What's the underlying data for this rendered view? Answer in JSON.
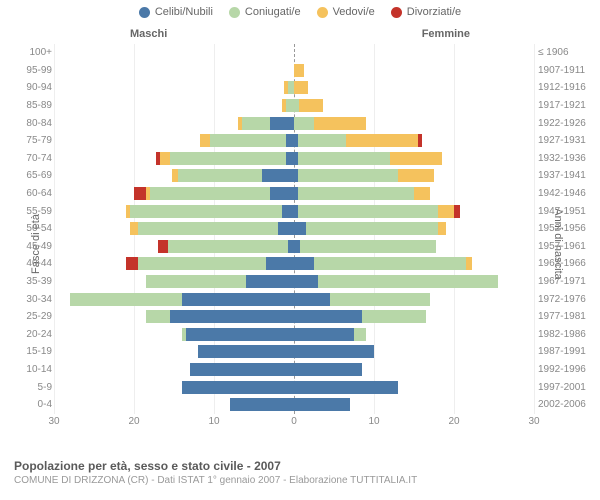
{
  "legend": [
    {
      "label": "Celibi/Nubili",
      "color": "#4b79a8"
    },
    {
      "label": "Coniugati/e",
      "color": "#b7d7a8"
    },
    {
      "label": "Vedovi/e",
      "color": "#f5c25d"
    },
    {
      "label": "Divorziati/e",
      "color": "#c4332a"
    }
  ],
  "header_male": "Maschi",
  "header_female": "Femmine",
  "ylabel_left": "Fasce di età",
  "ylabel_right": "Anni di nascita",
  "xmax": 30,
  "xticks_left": [
    30,
    20,
    10,
    0
  ],
  "xticks_right": [
    10,
    20,
    30
  ],
  "colors": {
    "celibi": "#4b79a8",
    "coniugati": "#b7d7a8",
    "vedovi": "#f5c25d",
    "divorziati": "#c4332a",
    "grid": "#eeeeee",
    "centerline": "#999999",
    "text_muted": "#888888",
    "bg": "#ffffff"
  },
  "rows": [
    {
      "age": "100+",
      "birth": "≤ 1906",
      "m": {
        "c": 0,
        "co": 0,
        "v": 0,
        "d": 0
      },
      "f": {
        "c": 0,
        "co": 0,
        "v": 0,
        "d": 0
      }
    },
    {
      "age": "95-99",
      "birth": "1907-1911",
      "m": {
        "c": 0,
        "co": 0,
        "v": 0,
        "d": 0
      },
      "f": {
        "c": 0,
        "co": 0,
        "v": 1.2,
        "d": 0
      }
    },
    {
      "age": "90-94",
      "birth": "1912-1916",
      "m": {
        "c": 0,
        "co": 0.8,
        "v": 0.5,
        "d": 0
      },
      "f": {
        "c": 0,
        "co": 0,
        "v": 1.8,
        "d": 0
      }
    },
    {
      "age": "85-89",
      "birth": "1917-1921",
      "m": {
        "c": 0,
        "co": 1.0,
        "v": 0.5,
        "d": 0
      },
      "f": {
        "c": 0,
        "co": 0.6,
        "v": 3.0,
        "d": 0
      }
    },
    {
      "age": "80-84",
      "birth": "1922-1926",
      "m": {
        "c": 3.0,
        "co": 3.5,
        "v": 0.5,
        "d": 0
      },
      "f": {
        "c": 0,
        "co": 2.5,
        "v": 6.5,
        "d": 0
      }
    },
    {
      "age": "75-79",
      "birth": "1927-1931",
      "m": {
        "c": 1.0,
        "co": 9.5,
        "v": 1.2,
        "d": 0
      },
      "f": {
        "c": 0.5,
        "co": 6.0,
        "v": 9.0,
        "d": 0.5
      }
    },
    {
      "age": "70-74",
      "birth": "1932-1936",
      "m": {
        "c": 1.0,
        "co": 14.5,
        "v": 1.3,
        "d": 0.5
      },
      "f": {
        "c": 0.5,
        "co": 11.5,
        "v": 6.5,
        "d": 0
      }
    },
    {
      "age": "65-69",
      "birth": "1937-1941",
      "m": {
        "c": 4.0,
        "co": 10.5,
        "v": 0.8,
        "d": 0
      },
      "f": {
        "c": 0.5,
        "co": 12.5,
        "v": 4.5,
        "d": 0
      }
    },
    {
      "age": "60-64",
      "birth": "1942-1946",
      "m": {
        "c": 3.0,
        "co": 15.0,
        "v": 0.5,
        "d": 1.5
      },
      "f": {
        "c": 0.5,
        "co": 14.5,
        "v": 2.0,
        "d": 0
      }
    },
    {
      "age": "55-59",
      "birth": "1947-1951",
      "m": {
        "c": 1.5,
        "co": 19.0,
        "v": 0.5,
        "d": 0
      },
      "f": {
        "c": 0.5,
        "co": 17.5,
        "v": 2.0,
        "d": 0.8
      }
    },
    {
      "age": "50-54",
      "birth": "1952-1956",
      "m": {
        "c": 2.0,
        "co": 17.5,
        "v": 1.0,
        "d": 0
      },
      "f": {
        "c": 1.5,
        "co": 16.5,
        "v": 1.0,
        "d": 0
      }
    },
    {
      "age": "45-49",
      "birth": "1957-1961",
      "m": {
        "c": 0.8,
        "co": 15.0,
        "v": 0,
        "d": 1.2
      },
      "f": {
        "c": 0.8,
        "co": 17.0,
        "v": 0,
        "d": 0
      }
    },
    {
      "age": "40-44",
      "birth": "1962-1966",
      "m": {
        "c": 3.5,
        "co": 16.0,
        "v": 0,
        "d": 1.5
      },
      "f": {
        "c": 2.5,
        "co": 19.0,
        "v": 0.8,
        "d": 0
      }
    },
    {
      "age": "35-39",
      "birth": "1967-1971",
      "m": {
        "c": 6.0,
        "co": 12.5,
        "v": 0,
        "d": 0
      },
      "f": {
        "c": 3.0,
        "co": 22.5,
        "v": 0,
        "d": 0
      }
    },
    {
      "age": "30-34",
      "birth": "1972-1976",
      "m": {
        "c": 14.0,
        "co": 14.0,
        "v": 0,
        "d": 0
      },
      "f": {
        "c": 4.5,
        "co": 12.5,
        "v": 0,
        "d": 0
      }
    },
    {
      "age": "25-29",
      "birth": "1977-1981",
      "m": {
        "c": 15.5,
        "co": 3.0,
        "v": 0,
        "d": 0
      },
      "f": {
        "c": 8.5,
        "co": 8.0,
        "v": 0,
        "d": 0
      }
    },
    {
      "age": "20-24",
      "birth": "1982-1986",
      "m": {
        "c": 13.5,
        "co": 0.5,
        "v": 0,
        "d": 0
      },
      "f": {
        "c": 7.5,
        "co": 1.5,
        "v": 0,
        "d": 0
      }
    },
    {
      "age": "15-19",
      "birth": "1987-1991",
      "m": {
        "c": 12.0,
        "co": 0,
        "v": 0,
        "d": 0
      },
      "f": {
        "c": 10.0,
        "co": 0,
        "v": 0,
        "d": 0
      }
    },
    {
      "age": "10-14",
      "birth": "1992-1996",
      "m": {
        "c": 13.0,
        "co": 0,
        "v": 0,
        "d": 0
      },
      "f": {
        "c": 8.5,
        "co": 0,
        "v": 0,
        "d": 0
      }
    },
    {
      "age": "5-9",
      "birth": "1997-2001",
      "m": {
        "c": 14.0,
        "co": 0,
        "v": 0,
        "d": 0
      },
      "f": {
        "c": 13.0,
        "co": 0,
        "v": 0,
        "d": 0
      }
    },
    {
      "age": "0-4",
      "birth": "2002-2006",
      "m": {
        "c": 8.0,
        "co": 0,
        "v": 0,
        "d": 0
      },
      "f": {
        "c": 7.0,
        "co": 0,
        "v": 0,
        "d": 0
      }
    }
  ],
  "footer_title": "Popolazione per età, sesso e stato civile - 2007",
  "footer_sub": "COMUNE DI DRIZZONA (CR) - Dati ISTAT 1° gennaio 2007 - Elaborazione TUTTITALIA.IT"
}
